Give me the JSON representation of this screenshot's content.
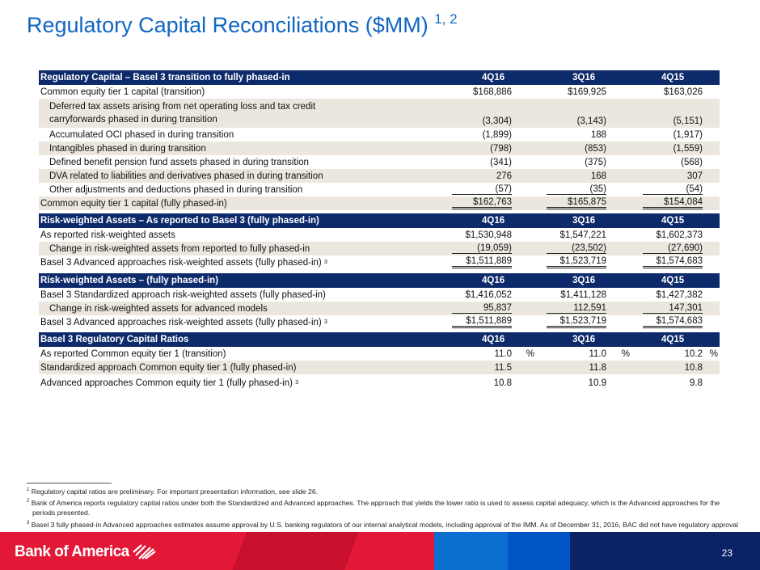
{
  "title": "Regulatory Capital Reconciliations ($MM)",
  "title_sup": "1, 2",
  "sections": [
    {
      "header": "Regulatory Capital – Basel 3 transition to fully phased-in",
      "cols": [
        "4Q16",
        "3Q16",
        "4Q15"
      ],
      "rows": [
        {
          "label": "Common equity tier 1 capital (transition)",
          "values": [
            "$168,886",
            "$169,925",
            "$163,026"
          ]
        },
        {
          "label": "Deferred tax assets arising from net operating loss and tax credit",
          "label2": "carryforwards phased in during transition",
          "values": [
            "(3,304)",
            "(3,143)",
            "(5,151)"
          ]
        },
        {
          "label": "Accumulated OCI phased in during transition",
          "values": [
            "(1,899)",
            "188",
            "(1,917)"
          ]
        },
        {
          "label": "Intangibles phased in during transition",
          "values": [
            "(798)",
            "(853)",
            "(1,559)"
          ]
        },
        {
          "label": "Defined benefit pension fund assets phased in during transition",
          "values": [
            "(341)",
            "(375)",
            "(568)"
          ]
        },
        {
          "label": "DVA related to liabilities and derivatives phased in during transition",
          "values": [
            "276",
            "168",
            "307"
          ]
        },
        {
          "label": "Other adjustments and deductions phased in during transition",
          "values": [
            "(57)",
            "(35)",
            "(54)"
          ]
        },
        {
          "label": "Common equity tier 1 capital (fully phased-in)",
          "values": [
            "$162,763",
            "$165,875",
            "$154,084"
          ]
        }
      ]
    },
    {
      "header": "Risk-weighted Assets – As reported to Basel 3 (fully phased-in)",
      "cols": [
        "4Q16",
        "3Q16",
        "4Q15"
      ],
      "rows": [
        {
          "label": "As reported risk-weighted assets",
          "values": [
            "$1,530,948",
            "$1,547,221",
            "$1,602,373"
          ]
        },
        {
          "label": "Change in risk-weighted assets from reported to fully phased-in",
          "values": [
            "(19,059)",
            "(23,502)",
            "(27,690)"
          ]
        },
        {
          "label": "Basel 3 Advanced approaches risk-weighted assets (fully phased-in)",
          "sup": "3",
          "values": [
            "$1,511,889",
            "$1,523,719",
            "$1,574,683"
          ]
        }
      ]
    },
    {
      "header": "Risk-weighted Assets – (fully phased-in)",
      "cols": [
        "4Q16",
        "3Q16",
        "4Q15"
      ],
      "rows": [
        {
          "label": "Basel 3 Standardized approach risk-weighted assets (fully phased-in)",
          "values": [
            "$1,416,052",
            "$1,411,128",
            "$1,427,382"
          ]
        },
        {
          "label": "Change in risk-weighted assets for advanced models",
          "values": [
            "95,837",
            "112,591",
            "147,301"
          ]
        },
        {
          "label": "Basel 3 Advanced approaches risk-weighted assets (fully phased-in)",
          "sup": "3",
          "values": [
            "$1,511,889",
            "$1,523,719",
            "$1,574,683"
          ]
        }
      ]
    },
    {
      "header": "Basel 3 Regulatory Capital Ratios",
      "cols": [
        "4Q16",
        "3Q16",
        "4Q15"
      ],
      "rows": [
        {
          "label": "As reported Common equity tier 1 (transition)",
          "values": [
            "11.0",
            "11.0",
            "10.2"
          ],
          "pct": "%"
        },
        {
          "label": "Standardized approach Common equity tier 1 (fully phased-in)",
          "values": [
            "11.5",
            "11.8",
            "10.8"
          ]
        },
        {
          "label": "Advanced approaches Common equity tier 1 (fully phased-in)",
          "sup": "3",
          "values": [
            "10.8",
            "10.9",
            "9.8"
          ]
        }
      ]
    }
  ],
  "footnotes": [
    {
      "n": "1",
      "text": "Regulatory capital ratios are preliminary. For important presentation information, see slide 26."
    },
    {
      "n": "2",
      "text": "Bank of America reports regulatory capital ratios under both the Standardized and Advanced approaches. The approach that yields the lower ratio is used to assess capital adequacy, which is the Advanced approaches for the periods presented."
    },
    {
      "n": "3",
      "text": "Basel 3 fully phased-in Advanced approaches estimates assume approval by U.S. banking regulators of our internal analytical models, including approval of the IMM. As of December 31, 2016, BAC did not have regulatory approval for the IMM model."
    }
  ],
  "footer": {
    "logo": "Bank of America",
    "page": "23"
  },
  "colors": {
    "title": "#1066c2",
    "header": "#0d2a6b",
    "shade": "#ebe7df",
    "red": "#e31837",
    "navy": "#0b2266"
  }
}
